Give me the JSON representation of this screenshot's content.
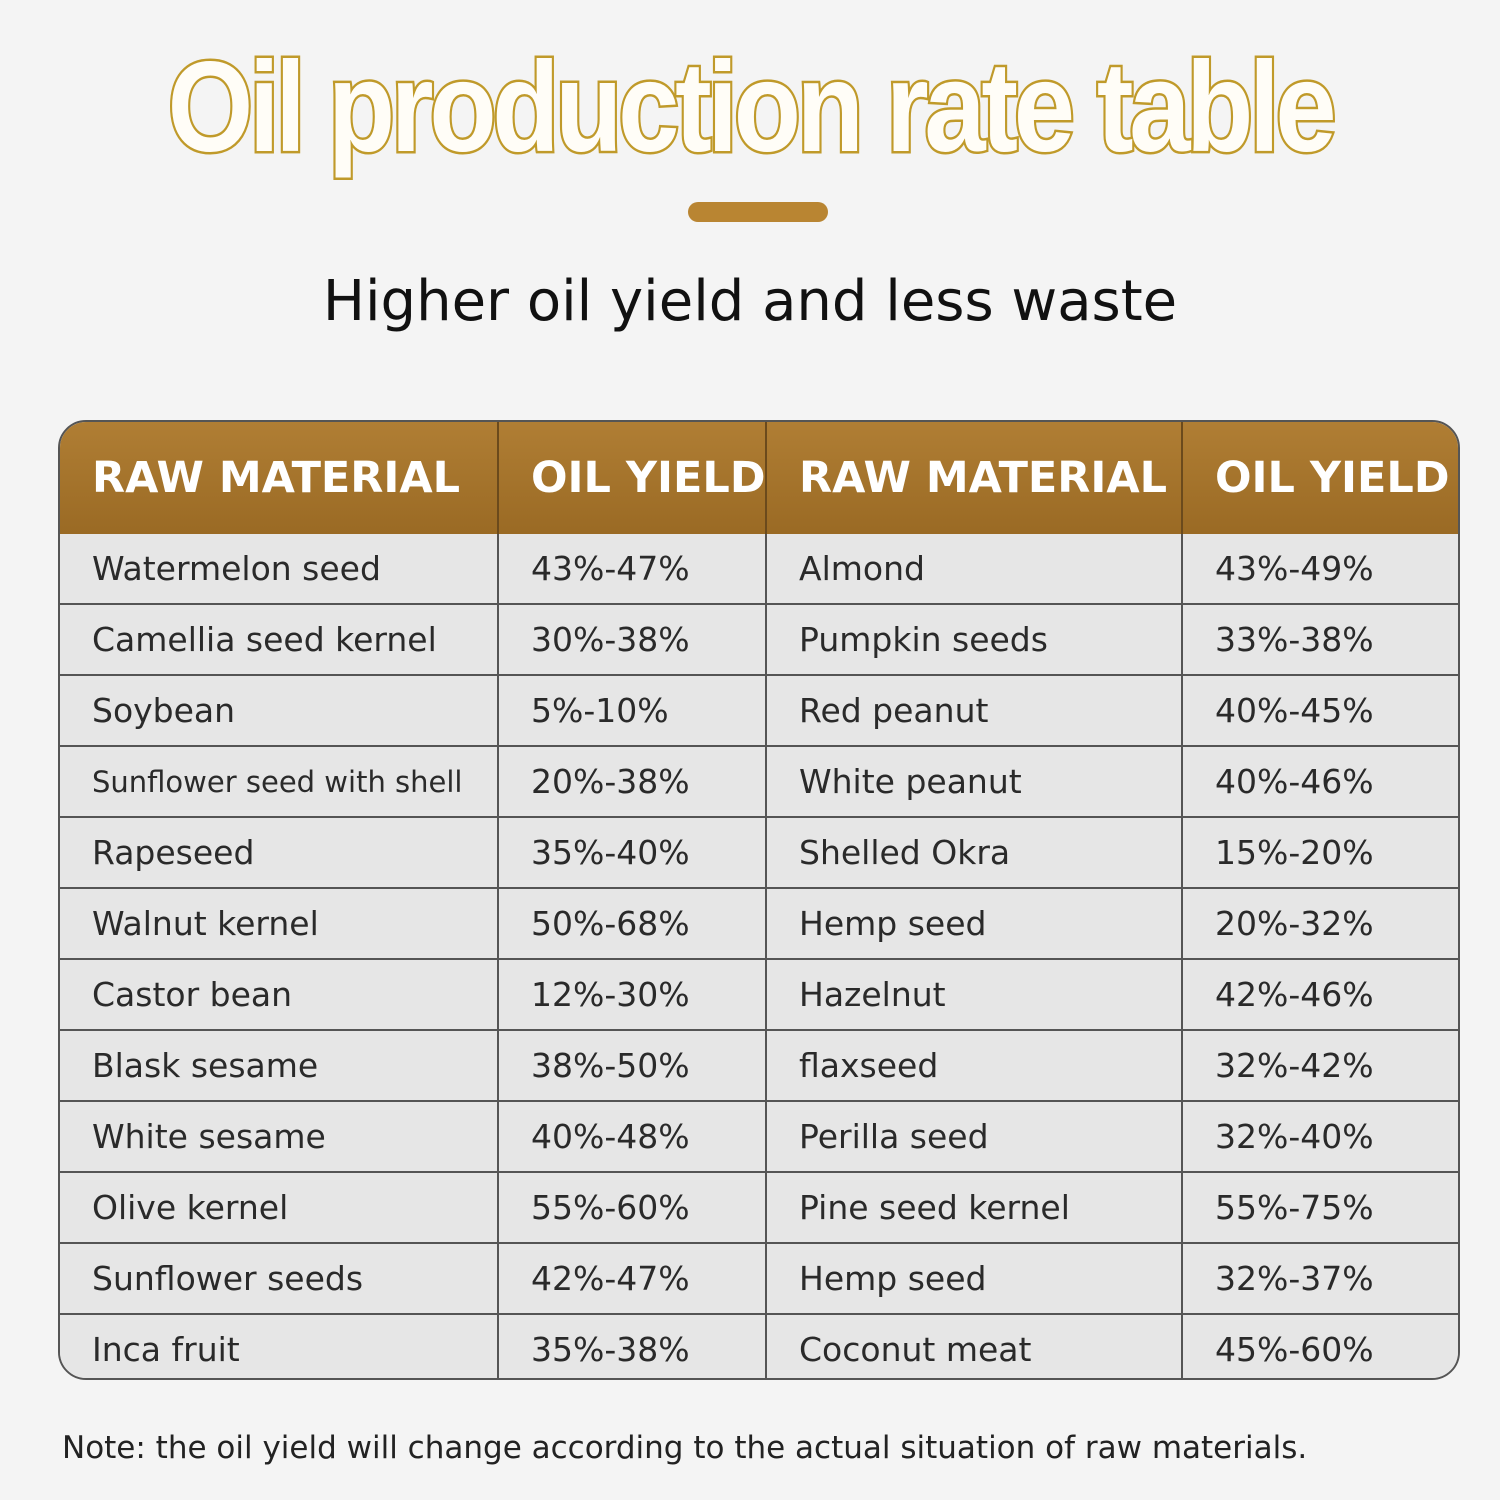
{
  "title": "Oil production rate table",
  "subtitle": "Higher oil yield and less waste",
  "table": {
    "headers": [
      "RAW MATERIAL",
      "OIL YIELD",
      "RAW MATERIAL",
      "OIL YIELD"
    ],
    "rows": [
      [
        "Watermelon seed",
        "43%-47%",
        "Almond",
        "43%-49%"
      ],
      [
        "Camellia seed kernel",
        "30%-38%",
        "Pumpkin seeds",
        "33%-38%"
      ],
      [
        "Soybean",
        "5%-10%",
        "Red peanut",
        "40%-45%"
      ],
      [
        "Sunflower seed with shell",
        "20%-38%",
        "White peanut",
        "40%-46%"
      ],
      [
        "Rapeseed",
        "35%-40%",
        "Shelled Okra",
        "15%-20%"
      ],
      [
        "Walnut kernel",
        "50%-68%",
        "Hemp seed",
        "20%-32%"
      ],
      [
        "Castor bean",
        "12%-30%",
        "Hazelnut",
        "42%-46%"
      ],
      [
        "Blask sesame",
        "38%-50%",
        "flaxseed",
        "32%-42%"
      ],
      [
        "White sesame",
        "40%-48%",
        "Perilla seed",
        "32%-40%"
      ],
      [
        "Olive kernel",
        "55%-60%",
        "Pine seed kernel",
        "55%-75%"
      ],
      [
        "Sunflower seeds",
        "42%-47%",
        "Hemp seed",
        "32%-37%"
      ],
      [
        "Inca fruit",
        "35%-38%",
        "Coconut meat",
        "45%-60%"
      ]
    ]
  },
  "note": "Note: the oil yield will change according to the actual situation of raw materials.",
  "colors": {
    "title_outline": "#c09a2a",
    "accent_bar": "#b98532",
    "header_bg": "#a8772e"
  }
}
